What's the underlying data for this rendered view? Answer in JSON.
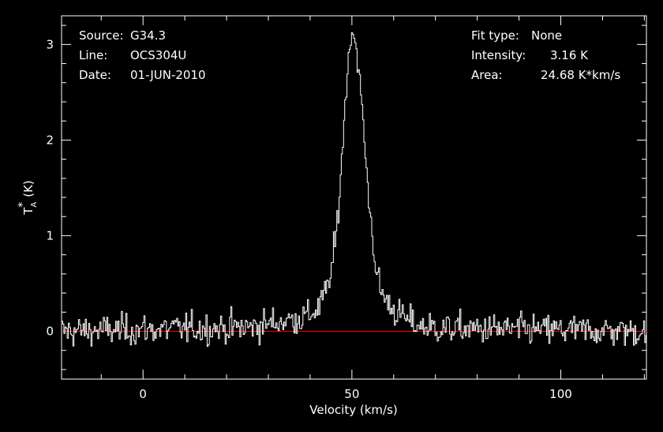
{
  "chart_data": {
    "type": "line",
    "title": "",
    "xlabel": "Velocity (km/s)",
    "ylabel_main": "T",
    "ylabel_sub": "A",
    "ylabel_sup": "*",
    "ylabel_unit": "(K)",
    "xlim": [
      -19.5,
      120.5
    ],
    "ylim": [
      -0.5,
      3.3
    ],
    "x_ticks": [
      0,
      50,
      100
    ],
    "x_tick_labels": [
      "0",
      "50",
      "100"
    ],
    "y_ticks": [
      0,
      1,
      2,
      3
    ],
    "y_tick_labels": [
      "0",
      "1",
      "2",
      "3"
    ],
    "baseline": 0,
    "grid": false,
    "colors": {
      "background": "#000000",
      "spectrum": "#ffffff",
      "baseline": "#ff0000",
      "axes": "#ffffff"
    },
    "series": [
      {
        "name": "",
        "profile": {
          "x": [
            -19.5,
            25,
            30,
            35,
            38,
            40,
            42,
            44,
            45,
            46,
            47,
            48,
            49,
            50,
            51,
            52,
            53,
            54,
            55,
            56,
            57,
            58,
            60,
            63,
            66,
            70,
            120.5
          ],
          "y": [
            0.0,
            0.04,
            0.08,
            0.12,
            0.14,
            0.18,
            0.25,
            0.45,
            0.65,
            0.95,
            1.5,
            2.2,
            2.85,
            3.16,
            2.95,
            2.5,
            1.9,
            1.35,
            0.9,
            0.55,
            0.4,
            0.33,
            0.22,
            0.12,
            0.06,
            0.03,
            0.0
          ]
        },
        "noise_rms": 0.08,
        "channel_spacing": 0.27
      }
    ]
  },
  "info": {
    "source_label": "Source:",
    "source_value": "G34.3",
    "line_label": "Line:",
    "line_value": "OCS304U",
    "date_label": "Date:",
    "date_value": "01-JUN-2010",
    "fit_label": "Fit type:",
    "fit_value": "None",
    "intensity_label": "Intensity:",
    "intensity_value": "3.16 K",
    "area_label": "Area:",
    "area_value": "24.68 K*km/s"
  }
}
